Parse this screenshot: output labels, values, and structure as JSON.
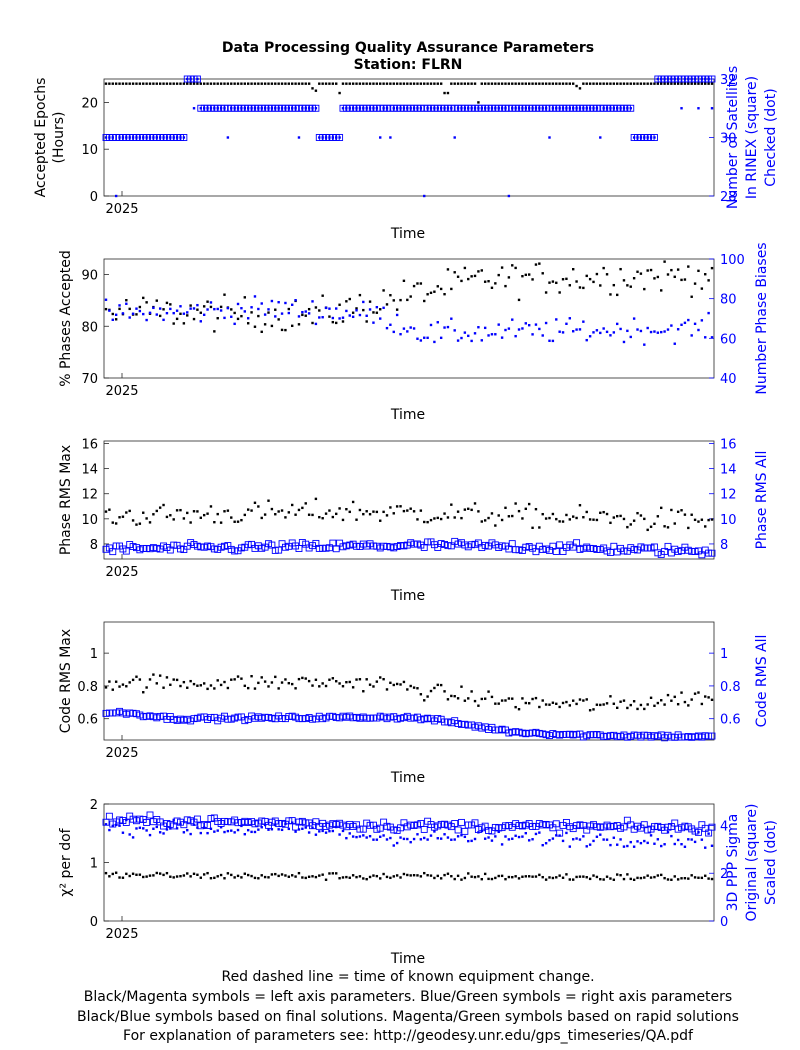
{
  "title_line1": "Data Processing Quality Assurance Parameters",
  "title_line2": "Station: FLRN",
  "footer": [
    "Red dashed line = time of known equipment change.",
    "Black/Magenta symbols = left axis parameters. Blue/Green symbols = right axis parameters",
    "Black/Blue symbols based on final solutions.  Magenta/Green symbols based on rapid solutions",
    "For explanation of parameters see: http://geodesy.unr.edu/gps_timeseries/QA.pdf"
  ],
  "colors": {
    "left": "#000000",
    "right": "#0000ff"
  },
  "chart_data": [
    {
      "type": "scatter",
      "xlabel": "Time",
      "x_ticks": [
        "2025"
      ],
      "ylabel": [
        "Accepted Epochs",
        "(Hours)"
      ],
      "ylim": [
        0,
        25
      ],
      "y_ticks": [
        "0",
        "10",
        "20"
      ],
      "y2label": [
        "Number of Satellites",
        "In RINEX (square)",
        "Checked (dot)"
      ],
      "y2lim": [
        28,
        32
      ],
      "y2_ticks": [
        "28",
        "30",
        "32"
      ],
      "n_points": 180,
      "series": [
        {
          "axis": "left",
          "marker": "dot",
          "color": "#000000",
          "values_by_day_range": [
            [
              0,
              179,
              24
            ]
          ],
          "dips": [
            [
              61,
              23
            ],
            [
              62,
              22.5
            ],
            [
              69,
              22
            ],
            [
              100,
              22
            ],
            [
              101,
              22
            ],
            [
              110,
              20
            ],
            [
              139,
              23.5
            ],
            [
              140,
              23
            ]
          ]
        },
        {
          "axis": "right",
          "marker": "square",
          "color": "#0000ff",
          "segments": [
            [
              0,
              23,
              30
            ],
            [
              24,
              27,
              32
            ],
            [
              28,
              62,
              31
            ],
            [
              63,
              69,
              30
            ],
            [
              70,
              155,
              31
            ],
            [
              156,
              162,
              30
            ],
            [
              163,
              165,
              32
            ],
            [
              166,
              179,
              32
            ]
          ]
        },
        {
          "axis": "right",
          "marker": "dot",
          "color": "#0000ff",
          "base_segments": [
            [
              0,
              23,
              30
            ],
            [
              24,
              27,
              32
            ],
            [
              28,
              62,
              31
            ],
            [
              63,
              69,
              30
            ],
            [
              70,
              155,
              31
            ],
            [
              156,
              162,
              30
            ],
            [
              163,
              179,
              32
            ]
          ]
        }
      ]
    },
    {
      "type": "scatter",
      "xlabel": "Time",
      "x_ticks": [
        "2025"
      ],
      "ylabel": [
        "% Phases Accepted"
      ],
      "ylim": [
        70,
        93
      ],
      "y_ticks": [
        "70",
        "80",
        "90"
      ],
      "y2label": [
        "Number Phase Biases"
      ],
      "y2lim": [
        40,
        100
      ],
      "y2_ticks": [
        "40",
        "60",
        "80",
        "100"
      ],
      "series": [
        {
          "axis": "left",
          "marker": "dot",
          "color": "#000000",
          "trend": [
            [
              0,
              83
            ],
            [
              60,
              82
            ],
            [
              70,
              83
            ],
            [
              90,
              86
            ],
            [
              110,
              89
            ],
            [
              180,
              90
            ]
          ],
          "spread": 3.2
        },
        {
          "axis": "right",
          "marker": "dot",
          "color": "#0000ff",
          "trend": [
            [
              0,
              72
            ],
            [
              50,
              75
            ],
            [
              80,
              72
            ],
            [
              95,
              62
            ],
            [
              110,
              63
            ],
            [
              180,
              65
            ]
          ],
          "spread": 6
        }
      ]
    },
    {
      "type": "scatter",
      "xlabel": "Time",
      "x_ticks": [
        "2025"
      ],
      "ylabel": [
        "Phase RMS Max"
      ],
      "ylim": [
        6.8,
        16.2
      ],
      "y_ticks": [
        "8",
        "10",
        "12",
        "14",
        "16"
      ],
      "y2label": [
        "Phase RMS All"
      ],
      "y2lim": [
        6.8,
        16.2
      ],
      "y2_ticks": [
        "8",
        "10",
        "12",
        "14",
        "16"
      ],
      "series": [
        {
          "axis": "left",
          "marker": "dot",
          "color": "#000000",
          "trend": [
            [
              0,
              10.2
            ],
            [
              70,
              10.6
            ],
            [
              100,
              10.4
            ],
            [
              180,
              9.8
            ]
          ],
          "spread": 0.9
        },
        {
          "axis": "right",
          "marker": "square",
          "color": "#0000ff",
          "trend": [
            [
              0,
              7.6
            ],
            [
              70,
              7.8
            ],
            [
              100,
              7.9
            ],
            [
              180,
              7.4
            ]
          ],
          "spread": 0.35
        }
      ]
    },
    {
      "type": "scatter",
      "xlabel": "Time",
      "x_ticks": [
        "2025"
      ],
      "ylabel": [
        "Code RMS Max"
      ],
      "ylim": [
        0.47,
        1.19
      ],
      "y_ticks": [
        "0.6",
        "0.8",
        "1"
      ],
      "y2label": [
        "Code RMS All"
      ],
      "y2lim": [
        0.47,
        1.19
      ],
      "y2_ticks": [
        "0.6",
        "0.8",
        "1"
      ],
      "series": [
        {
          "axis": "left",
          "marker": "dot",
          "color": "#000000",
          "trend": [
            [
              0,
              0.82
            ],
            [
              80,
              0.82
            ],
            [
              100,
              0.75
            ],
            [
              120,
              0.7
            ],
            [
              150,
              0.68
            ],
            [
              180,
              0.74
            ]
          ],
          "spread": 0.05
        },
        {
          "axis": "right",
          "marker": "square",
          "color": "#0000ff",
          "trend": [
            [
              0,
              0.63
            ],
            [
              5,
              0.64
            ],
            [
              20,
              0.6
            ],
            [
              85,
              0.61
            ],
            [
              95,
              0.6
            ],
            [
              120,
              0.52
            ],
            [
              140,
              0.5
            ],
            [
              180,
              0.49
            ]
          ],
          "spread": 0.012
        }
      ]
    },
    {
      "type": "scatter",
      "xlabel": "Time",
      "x_ticks": [
        "2025"
      ],
      "ylabel": [
        "χ² per dof"
      ],
      "ylim": [
        0,
        2
      ],
      "y_ticks": [
        "0",
        "1",
        "2"
      ],
      "y2label": [
        "3D PPP Sigma",
        "Original (square)",
        "Scaled (dot)"
      ],
      "y2lim": [
        0,
        4.9
      ],
      "y2_ticks": [
        "0",
        "2",
        "4"
      ],
      "series": [
        {
          "axis": "left",
          "marker": "dot",
          "color": "#000000",
          "trend": [
            [
              0,
              0.78
            ],
            [
              180,
              0.74
            ]
          ],
          "spread": 0.06
        },
        {
          "axis": "right",
          "marker": "square",
          "color": "#0000ff",
          "trend": [
            [
              0,
              4.2
            ],
            [
              60,
              4.1
            ],
            [
              80,
              4.0
            ],
            [
              180,
              3.9
            ]
          ],
          "spread": 0.2
        },
        {
          "axis": "right",
          "marker": "dot",
          "color": "#0000ff",
          "trend": [
            [
              0,
              3.9
            ],
            [
              60,
              3.8
            ],
            [
              80,
              3.5
            ],
            [
              180,
              3.4
            ]
          ],
          "spread": 0.3
        }
      ]
    }
  ]
}
